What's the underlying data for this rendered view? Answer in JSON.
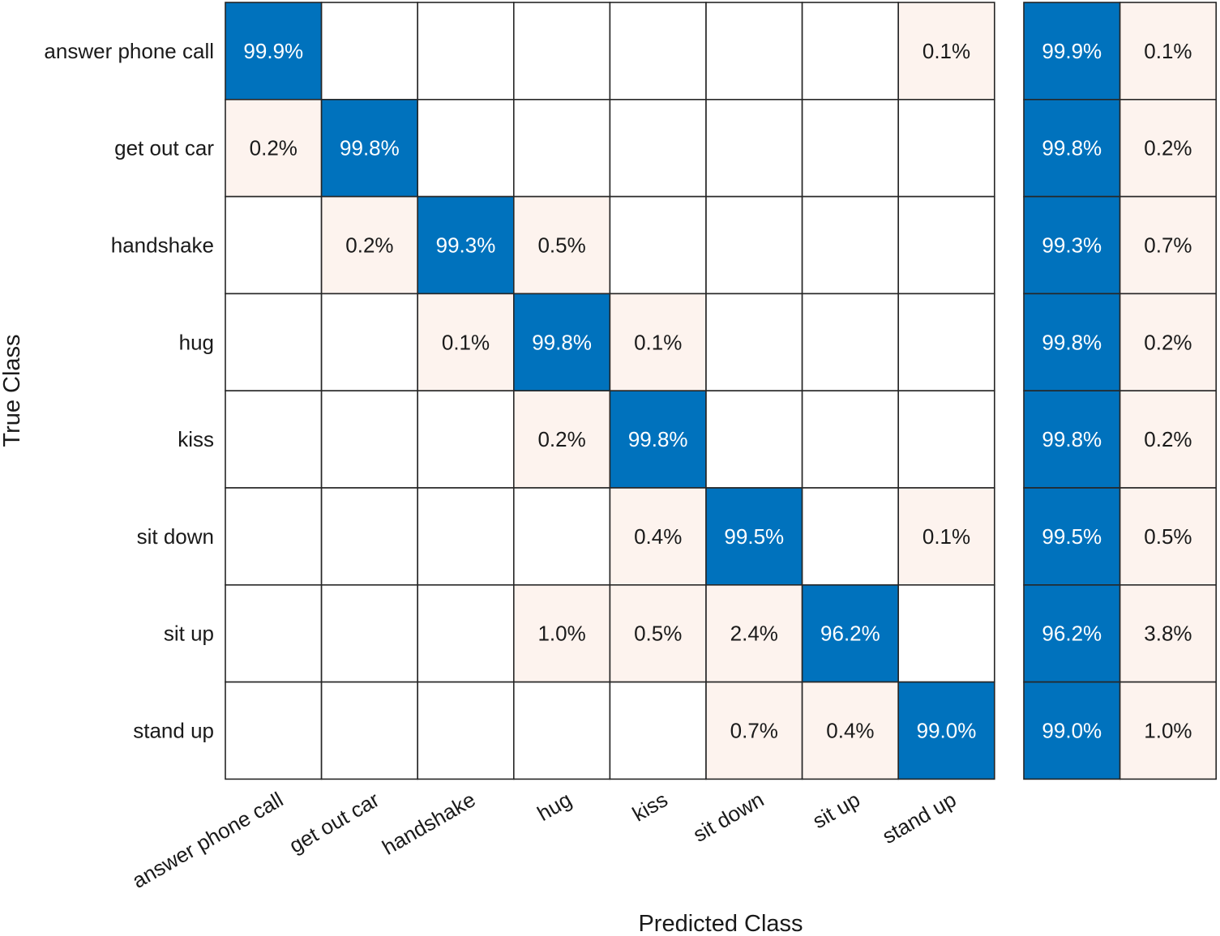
{
  "chart_data": {
    "type": "heatmap",
    "title": "",
    "xlabel": "Predicted Class",
    "ylabel": "True Class",
    "classes": [
      "answer phone call",
      "get out car",
      "handshake",
      "hug",
      "kiss",
      "sit down",
      "sit up",
      "stand up"
    ],
    "matrix": [
      [
        99.9,
        null,
        null,
        null,
        null,
        null,
        null,
        0.1
      ],
      [
        0.2,
        99.8,
        null,
        null,
        null,
        null,
        null,
        null
      ],
      [
        null,
        0.2,
        99.3,
        0.5,
        null,
        null,
        null,
        null
      ],
      [
        null,
        null,
        0.1,
        99.8,
        0.1,
        null,
        null,
        null
      ],
      [
        null,
        null,
        null,
        0.2,
        99.8,
        null,
        null,
        null
      ],
      [
        null,
        null,
        null,
        null,
        0.4,
        99.5,
        null,
        0.1
      ],
      [
        null,
        null,
        null,
        1.0,
        0.5,
        2.4,
        96.2,
        null
      ],
      [
        null,
        null,
        null,
        null,
        null,
        0.7,
        0.4,
        99.0
      ]
    ],
    "row_summary": {
      "correct": [
        99.9,
        99.8,
        99.3,
        99.8,
        99.8,
        99.5,
        96.2,
        99.0
      ],
      "incorrect": [
        0.1,
        0.2,
        0.7,
        0.2,
        0.2,
        0.5,
        3.8,
        1.0
      ]
    },
    "value_suffix": "%",
    "colors": {
      "diagonal": "#0072BD",
      "off_diagonal": "#FDF3EE",
      "empty": "#FFFFFF",
      "grid": "#262626",
      "text_dark": "#1A1A1A",
      "text_light": "#FFFFFF"
    }
  }
}
